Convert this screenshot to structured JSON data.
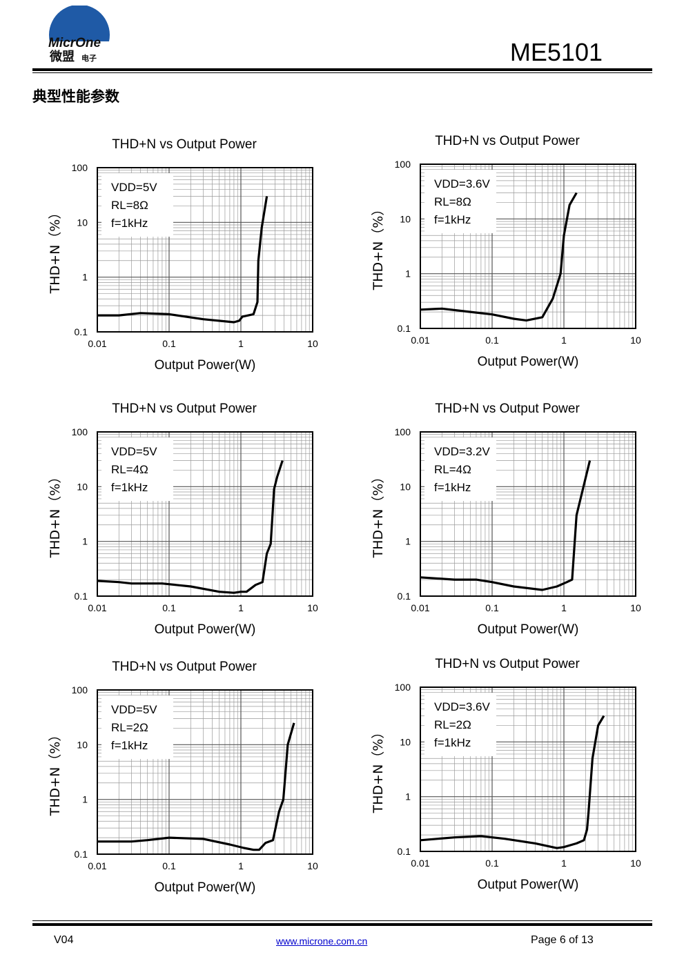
{
  "header": {
    "logo_text": "MicrOne",
    "logo_cn": "微盟",
    "logo_cn_small": "电子",
    "part_number": "ME5101"
  },
  "section_title": "典型性能参数",
  "footer": {
    "version": "V04",
    "url": "www.microne.com.cn",
    "page": "Page 6 of 13"
  },
  "chart_data": [
    {
      "type": "line",
      "title": "THD+N vs Output Power",
      "xlabel": "Output Power(W)",
      "ylabel": "THD+N（%）",
      "xscale": "log",
      "yscale": "log",
      "xlim": [
        0.01,
        10
      ],
      "ylim": [
        0.1,
        100
      ],
      "xticks": [
        "0.01",
        "0.1",
        "1",
        "10"
      ],
      "yticks": [
        "0.1",
        "1",
        "10",
        "100"
      ],
      "annotation": [
        "VDD=5V",
        "RL=8Ω",
        "f=1kHz"
      ],
      "series": [
        {
          "values": [
            [
              0.01,
              0.2
            ],
            [
              0.02,
              0.2
            ],
            [
              0.04,
              0.22
            ],
            [
              0.1,
              0.21
            ],
            [
              0.3,
              0.17
            ],
            [
              0.8,
              0.15
            ],
            [
              0.95,
              0.16
            ],
            [
              1.05,
              0.19
            ],
            [
              1.5,
              0.21
            ],
            [
              1.7,
              0.35
            ],
            [
              1.75,
              2
            ],
            [
              1.95,
              8
            ],
            [
              2.3,
              30
            ]
          ]
        }
      ]
    },
    {
      "type": "line",
      "title": "THD+N vs Output Power",
      "xlabel": "Output Power(W)",
      "ylabel": "THD+N（%）",
      "xscale": "log",
      "yscale": "log",
      "xlim": [
        0.01,
        10
      ],
      "ylim": [
        0.1,
        100
      ],
      "xticks": [
        "0.01",
        "0.1",
        "1",
        "10"
      ],
      "yticks": [
        "0.1",
        "1",
        "10",
        "100"
      ],
      "annotation": [
        "VDD=3.6V",
        "RL=8Ω",
        "f=1kHz"
      ],
      "series": [
        {
          "values": [
            [
              0.01,
              0.22
            ],
            [
              0.02,
              0.23
            ],
            [
              0.05,
              0.2
            ],
            [
              0.1,
              0.18
            ],
            [
              0.2,
              0.15
            ],
            [
              0.3,
              0.14
            ],
            [
              0.5,
              0.16
            ],
            [
              0.7,
              0.35
            ],
            [
              0.9,
              1
            ],
            [
              1.0,
              5
            ],
            [
              1.2,
              18
            ],
            [
              1.5,
              30
            ]
          ]
        }
      ]
    },
    {
      "type": "line",
      "title": "THD+N vs Output Power",
      "xlabel": "Output Power(W)",
      "ylabel": "THD+N（%）",
      "xscale": "log",
      "yscale": "log",
      "xlim": [
        0.01,
        10
      ],
      "ylim": [
        0.1,
        100
      ],
      "xticks": [
        "0.01",
        "0.1",
        "1",
        "10"
      ],
      "yticks": [
        "0.1",
        "1",
        "10",
        "100"
      ],
      "annotation": [
        "VDD=5V",
        "RL=4Ω",
        "f=1kHz"
      ],
      "series": [
        {
          "values": [
            [
              0.01,
              0.19
            ],
            [
              0.02,
              0.18
            ],
            [
              0.03,
              0.17
            ],
            [
              0.08,
              0.17
            ],
            [
              0.2,
              0.15
            ],
            [
              0.5,
              0.12
            ],
            [
              0.8,
              0.115
            ],
            [
              1.0,
              0.12
            ],
            [
              1.2,
              0.12
            ],
            [
              1.6,
              0.16
            ],
            [
              2.0,
              0.18
            ],
            [
              2.3,
              0.6
            ],
            [
              2.6,
              0.9
            ],
            [
              2.9,
              9
            ],
            [
              3.2,
              15
            ],
            [
              3.8,
              30
            ]
          ]
        }
      ]
    },
    {
      "type": "line",
      "title": "THD+N vs Output Power",
      "xlabel": "Output Power(W)",
      "ylabel": "THD+N（%）",
      "xscale": "log",
      "yscale": "log",
      "xlim": [
        0.01,
        10
      ],
      "ylim": [
        0.1,
        100
      ],
      "xticks": [
        "0.01",
        "0.1",
        "1",
        "10"
      ],
      "yticks": [
        "0.1",
        "1",
        "10",
        "100"
      ],
      "annotation": [
        "VDD=3.2V",
        "RL=4Ω",
        "f=1kHz"
      ],
      "series": [
        {
          "values": [
            [
              0.01,
              0.22
            ],
            [
              0.03,
              0.2
            ],
            [
              0.06,
              0.2
            ],
            [
              0.1,
              0.18
            ],
            [
              0.2,
              0.15
            ],
            [
              0.5,
              0.13
            ],
            [
              0.8,
              0.15
            ],
            [
              1.1,
              0.18
            ],
            [
              1.3,
              0.2
            ],
            [
              1.5,
              3
            ],
            [
              2.3,
              30
            ]
          ]
        }
      ]
    },
    {
      "type": "line",
      "title": "THD+N vs Output Power",
      "xlabel": "Output Power(W)",
      "ylabel": "THD+N（%）",
      "xscale": "log",
      "yscale": "log",
      "xlim": [
        0.01,
        10
      ],
      "ylim": [
        0.1,
        100
      ],
      "xticks": [
        "0.01",
        "0.1",
        "1",
        "10"
      ],
      "yticks": [
        "0.1",
        "1",
        "10",
        "100"
      ],
      "annotation": [
        "VDD=5V",
        "RL=2Ω",
        "f=1kHz"
      ],
      "series": [
        {
          "values": [
            [
              0.01,
              0.17
            ],
            [
              0.03,
              0.17
            ],
            [
              0.05,
              0.18
            ],
            [
              0.1,
              0.2
            ],
            [
              0.3,
              0.19
            ],
            [
              0.7,
              0.15
            ],
            [
              1.1,
              0.13
            ],
            [
              1.5,
              0.12
            ],
            [
              1.8,
              0.12
            ],
            [
              2.2,
              0.16
            ],
            [
              2.8,
              0.18
            ],
            [
              3.4,
              0.6
            ],
            [
              3.9,
              1
            ],
            [
              4.5,
              10
            ],
            [
              5.5,
              25
            ]
          ]
        }
      ]
    },
    {
      "type": "line",
      "title": "THD+N vs Output Power",
      "xlabel": "Output Power(W)",
      "ylabel": "THD+N（%）",
      "xscale": "log",
      "yscale": "log",
      "xlim": [
        0.01,
        10
      ],
      "ylim": [
        0.1,
        100
      ],
      "xticks": [
        "0.01",
        "0.1",
        "1",
        "10"
      ],
      "yticks": [
        "0.1",
        "1",
        "10",
        "100"
      ],
      "annotation": [
        "VDD=3.6V",
        "RL=2Ω",
        "f=1kHz"
      ],
      "series": [
        {
          "values": [
            [
              0.01,
              0.16
            ],
            [
              0.03,
              0.18
            ],
            [
              0.07,
              0.19
            ],
            [
              0.15,
              0.17
            ],
            [
              0.4,
              0.14
            ],
            [
              0.8,
              0.115
            ],
            [
              1.0,
              0.12
            ],
            [
              1.5,
              0.14
            ],
            [
              1.9,
              0.16
            ],
            [
              2.1,
              0.25
            ],
            [
              2.2,
              0.5
            ],
            [
              2.5,
              5
            ],
            [
              3.0,
              20
            ],
            [
              3.6,
              30
            ]
          ]
        }
      ]
    }
  ]
}
